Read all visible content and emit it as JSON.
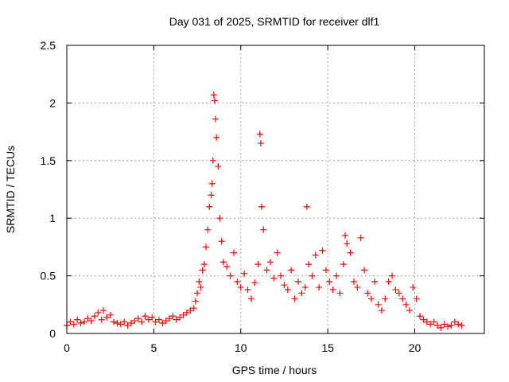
{
  "chart_data": {
    "type": "scatter",
    "title": "Day 031 of 2025, SRMTID for receiver dlf1",
    "xlabel": "GPS time / hours",
    "ylabel": "SRMTID / TECUs",
    "xlim": [
      0,
      24
    ],
    "ylim": [
      0,
      2.5
    ],
    "xticks": [
      0,
      5,
      10,
      15,
      20
    ],
    "xtick_labels": [
      "0",
      "5",
      "10",
      "15",
      "20"
    ],
    "yticks": [
      0,
      0.5,
      1,
      1.5,
      2,
      2.5
    ],
    "ytick_labels": [
      "0",
      "0.5",
      "1",
      "1.5",
      "2",
      "2.5"
    ],
    "grid": true,
    "marker": "+",
    "series": [
      {
        "name": "SRMTID",
        "color": "#ff0000",
        "x": [
          0.0,
          0.2,
          0.4,
          0.6,
          0.8,
          1.0,
          1.2,
          1.4,
          1.6,
          1.8,
          2.0,
          2.1,
          2.3,
          2.5,
          2.7,
          2.9,
          3.1,
          3.3,
          3.5,
          3.7,
          3.9,
          4.1,
          4.3,
          4.5,
          4.7,
          4.9,
          5.1,
          5.3,
          5.5,
          5.7,
          5.9,
          6.1,
          6.3,
          6.5,
          6.7,
          6.9,
          7.1,
          7.3,
          7.4,
          7.5,
          7.6,
          7.7,
          7.8,
          7.9,
          8.0,
          8.1,
          8.2,
          8.3,
          8.35,
          8.4,
          8.45,
          8.5,
          8.55,
          8.6,
          8.7,
          8.8,
          8.9,
          9.0,
          9.2,
          9.4,
          9.6,
          9.8,
          10.0,
          10.2,
          10.4,
          10.6,
          10.8,
          11.0,
          11.1,
          11.15,
          11.2,
          11.3,
          11.5,
          11.7,
          11.9,
          12.1,
          12.3,
          12.5,
          12.7,
          12.9,
          13.1,
          13.3,
          13.5,
          13.7,
          13.8,
          13.9,
          14.1,
          14.3,
          14.5,
          14.7,
          14.9,
          15.1,
          15.3,
          15.5,
          15.7,
          15.9,
          16.0,
          16.1,
          16.3,
          16.5,
          16.7,
          16.9,
          17.1,
          17.3,
          17.5,
          17.7,
          17.9,
          18.1,
          18.3,
          18.5,
          18.7,
          18.9,
          19.1,
          19.3,
          19.5,
          19.7,
          19.9,
          20.1,
          20.3,
          20.5,
          20.7,
          20.9,
          21.1,
          21.3,
          21.5,
          21.7,
          21.9,
          22.1,
          22.3,
          22.5,
          22.7
        ],
        "y": [
          0.07,
          0.1,
          0.08,
          0.12,
          0.09,
          0.1,
          0.13,
          0.11,
          0.15,
          0.18,
          0.12,
          0.2,
          0.14,
          0.16,
          0.1,
          0.09,
          0.08,
          0.1,
          0.07,
          0.09,
          0.11,
          0.13,
          0.1,
          0.15,
          0.12,
          0.14,
          0.1,
          0.12,
          0.09,
          0.11,
          0.13,
          0.15,
          0.12,
          0.14,
          0.16,
          0.18,
          0.2,
          0.22,
          0.28,
          0.35,
          0.45,
          0.4,
          0.55,
          0.6,
          0.75,
          0.9,
          1.1,
          1.2,
          1.3,
          1.5,
          2.07,
          2.02,
          1.86,
          1.7,
          1.45,
          1.0,
          0.8,
          0.62,
          0.58,
          0.5,
          0.7,
          0.45,
          0.4,
          0.52,
          0.38,
          0.3,
          0.44,
          0.6,
          1.73,
          1.65,
          1.1,
          0.9,
          0.55,
          0.62,
          0.48,
          0.7,
          0.5,
          0.42,
          0.38,
          0.55,
          0.3,
          0.45,
          0.35,
          0.4,
          1.1,
          0.6,
          0.5,
          0.68,
          0.4,
          0.72,
          0.55,
          0.45,
          0.38,
          0.5,
          0.35,
          0.6,
          0.85,
          0.78,
          0.7,
          0.45,
          0.4,
          0.83,
          0.55,
          0.35,
          0.3,
          0.45,
          0.25,
          0.2,
          0.3,
          0.45,
          0.5,
          0.38,
          0.35,
          0.3,
          0.25,
          0.2,
          0.4,
          0.3,
          0.15,
          0.12,
          0.1,
          0.08,
          0.1,
          0.07,
          0.05,
          0.08,
          0.06,
          0.07,
          0.1,
          0.08,
          0.07
        ]
      }
    ]
  }
}
